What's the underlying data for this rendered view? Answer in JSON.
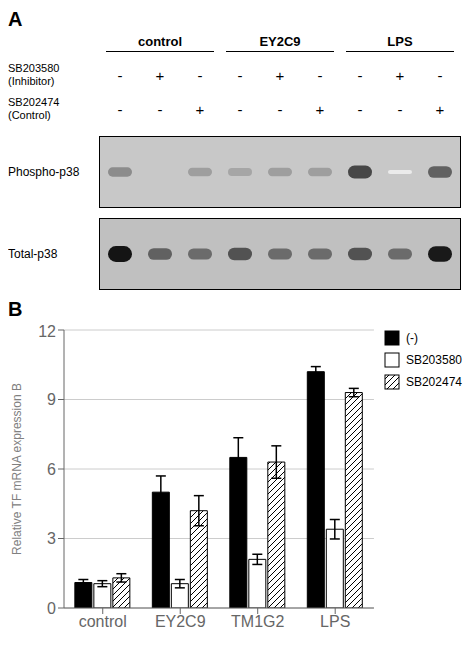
{
  "chart_data": [
    {
      "type": "blot",
      "title": "A",
      "groups": [
        "control",
        "EY2C9",
        "LPS"
      ],
      "rows": [
        {
          "label": "SB203580\n(Inhibitor)",
          "signs": [
            "-",
            "+",
            "-",
            "-",
            "+",
            "-",
            "-",
            "+",
            "-"
          ]
        },
        {
          "label": "SB202474\n(Control)",
          "signs": [
            "-",
            "-",
            "+",
            "-",
            "-",
            "+",
            "-",
            "-",
            "+"
          ]
        }
      ],
      "series": [
        {
          "name": "Phospho-p38",
          "color": "#c8c8c8",
          "values": [
            0.45,
            0.0,
            0.38,
            0.35,
            0.38,
            0.38,
            0.72,
            0.08,
            0.62
          ]
        },
        {
          "name": "Total-p38",
          "color": "#c0c0c0",
          "values": [
            0.92,
            0.62,
            0.58,
            0.68,
            0.58,
            0.58,
            0.68,
            0.58,
            0.9
          ]
        }
      ]
    },
    {
      "type": "bar",
      "title": "B",
      "categories": [
        "control",
        "EY2C9",
        "TM1G2",
        "LPS"
      ],
      "ylabel": "Relative TF mRNA expression B",
      "ylim": [
        0,
        12
      ],
      "yticks": [
        0,
        3,
        6,
        9,
        12
      ],
      "grid": true,
      "legend": "right",
      "series": [
        {
          "name": "(-)",
          "color": "#000000",
          "values": [
            1.1,
            5.0,
            6.5,
            10.2
          ],
          "errors": [
            0.13,
            0.7,
            0.85,
            0.22
          ]
        },
        {
          "name": "SB203580",
          "color": "#ffffff",
          "values": [
            1.05,
            1.05,
            2.1,
            3.4
          ],
          "errors": [
            0.13,
            0.18,
            0.22,
            0.42
          ]
        },
        {
          "name": "SB202474",
          "color": "#ffffff",
          "values": [
            1.3,
            4.2,
            6.3,
            9.3
          ],
          "errors": [
            0.18,
            0.65,
            0.7,
            0.18
          ]
        }
      ]
    }
  ]
}
